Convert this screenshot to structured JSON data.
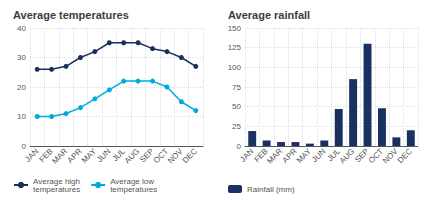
{
  "chart_data": [
    {
      "type": "line",
      "title": "Average temperatures",
      "categories": [
        "JAN",
        "FEB",
        "MAR",
        "APR",
        "MAY",
        "JUN",
        "JUL",
        "AUG",
        "SEP",
        "OCT",
        "NOV",
        "DEC"
      ],
      "series": [
        {
          "name": "Average high\ntemperatures",
          "color": "#1a2f5a",
          "marker": "circle",
          "values": [
            26,
            26,
            27,
            30,
            32,
            35,
            35,
            35,
            33,
            32,
            30,
            27
          ]
        },
        {
          "name": "Average low\ntemperatures",
          "color": "#00aadd",
          "marker": "circle",
          "values": [
            10,
            10,
            11,
            13,
            16,
            19,
            22,
            22,
            22,
            20,
            15,
            12
          ]
        }
      ],
      "ylim": [
        0,
        40
      ],
      "yticks": [
        0,
        10,
        20,
        30,
        40
      ],
      "grid": true,
      "legend": "bottom"
    },
    {
      "type": "bar",
      "title": "Average rainfall",
      "categories": [
        "JAN",
        "FEB",
        "MAR",
        "APR",
        "MAY",
        "JUN",
        "JUL",
        "AUG",
        "SEP",
        "OCT",
        "NOV",
        "DEC"
      ],
      "series": [
        {
          "name": "Rainfall (mm)",
          "color": "#1a3060",
          "values": [
            19,
            7,
            5,
            5,
            3,
            7,
            47,
            85,
            130,
            48,
            11,
            20
          ]
        }
      ],
      "ylim": [
        0,
        150
      ],
      "yticks": [
        0,
        25,
        50,
        75,
        100,
        125,
        150
      ],
      "grid": true,
      "legend": "bottom"
    }
  ]
}
